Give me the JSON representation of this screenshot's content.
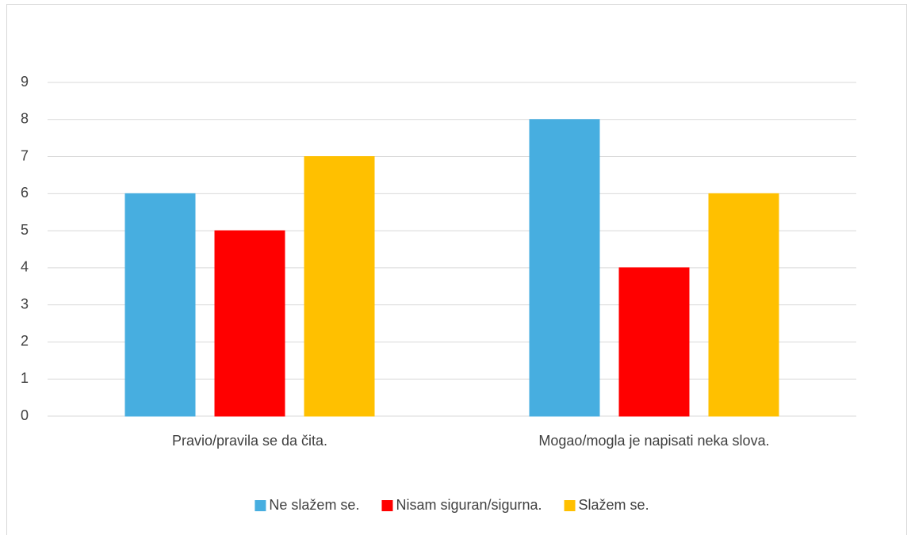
{
  "chart_data": {
    "type": "bar",
    "categories": [
      "Pravio/pravila se da čita.",
      "Mogao/mogla je napisati neka slova."
    ],
    "series": [
      {
        "name": "Ne slažem se.",
        "color": "#47aee0",
        "values": [
          6,
          8
        ]
      },
      {
        "name": "Nisam siguran/sigurna.",
        "color": "#ff0000",
        "values": [
          5,
          4
        ]
      },
      {
        "name": "Slažem se.",
        "color": "#ffc000",
        "values": [
          7,
          6
        ]
      }
    ],
    "ylim": [
      0,
      9
    ],
    "yticks": [
      0,
      1,
      2,
      3,
      4,
      5,
      6,
      7,
      8,
      9
    ],
    "grid": true,
    "legend": "bottom"
  }
}
